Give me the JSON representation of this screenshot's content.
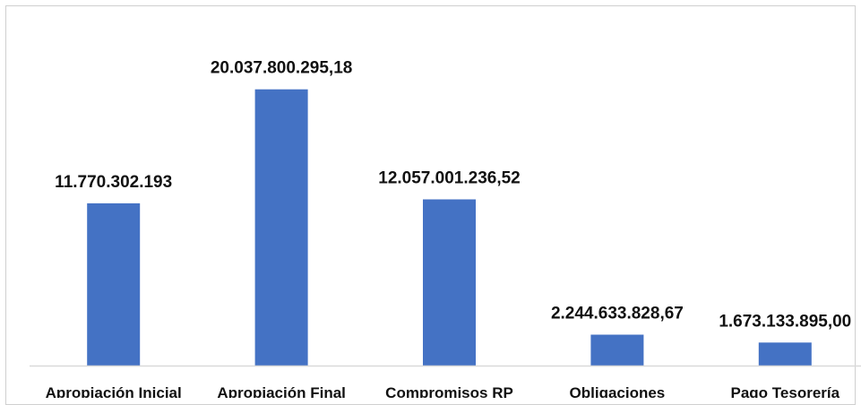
{
  "chart_data": {
    "type": "bar",
    "title": "",
    "xlabel": "",
    "ylabel": "",
    "categories": [
      "Apropiación Inicial",
      "Apropiación Final",
      "Compromisos RP",
      "Obligaciones",
      "Pago Tesorería"
    ],
    "values": [
      11770302193,
      20037800295.18,
      12057001236.52,
      2244633828.67,
      1673133895.0
    ],
    "data_labels": [
      "11.770.302.193",
      "20.037.800.295,18",
      "12.057.001.236,52",
      "2.244.633.828,67",
      "1.673.133.895,00"
    ],
    "ylim": [
      0,
      26000000000
    ],
    "grid": false,
    "legend": "none",
    "bar_color": "#4472C4",
    "axis_color": "#D9D9D9"
  }
}
